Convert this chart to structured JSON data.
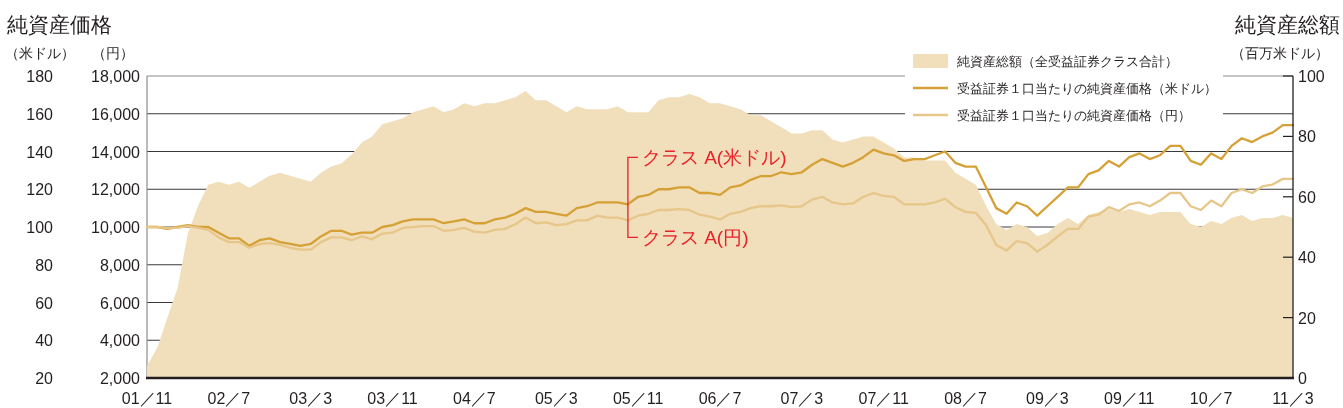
{
  "chart_data": {
    "type": "line",
    "title": "純資産価格",
    "ylabel": "（米ドル）",
    "y2label": "（円）",
    "y3label": "（百万米ドル）",
    "x": [
      "2001-11",
      "2001-12",
      "2002-01",
      "2002-02",
      "2002-03",
      "2002-04",
      "2002-05",
      "2002-06",
      "2002-07",
      "2002-08",
      "2002-09",
      "2002-10",
      "2002-11",
      "2002-12",
      "2003-01",
      "2003-02",
      "2003-03",
      "2003-04",
      "2003-05",
      "2003-06",
      "2003-07",
      "2003-08",
      "2003-09",
      "2003-10",
      "2003-11",
      "2003-12",
      "2004-01",
      "2004-02",
      "2004-03",
      "2004-04",
      "2004-05",
      "2004-06",
      "2004-07",
      "2004-08",
      "2004-09",
      "2004-10",
      "2004-11",
      "2004-12",
      "2005-01",
      "2005-02",
      "2005-03",
      "2005-04",
      "2005-05",
      "2005-06",
      "2005-07",
      "2005-08",
      "2005-09",
      "2005-10",
      "2005-11",
      "2005-12",
      "2006-01",
      "2006-02",
      "2006-03",
      "2006-04",
      "2006-05",
      "2006-06",
      "2006-07",
      "2006-08",
      "2006-09",
      "2006-10",
      "2006-11",
      "2006-12",
      "2007-01",
      "2007-02",
      "2007-03",
      "2007-04",
      "2007-05",
      "2007-06",
      "2007-07",
      "2007-08",
      "2007-09",
      "2007-10",
      "2007-11",
      "2007-12",
      "2008-01",
      "2008-02",
      "2008-03",
      "2008-04",
      "2008-05",
      "2008-06",
      "2008-07",
      "2008-08",
      "2008-09",
      "2008-10",
      "2008-11",
      "2008-12",
      "2009-01",
      "2009-02",
      "2009-03",
      "2009-04",
      "2009-05",
      "2009-06",
      "2009-07",
      "2009-08",
      "2009-09",
      "2009-10",
      "2009-11",
      "2009-12",
      "2010-01",
      "2010-02",
      "2010-03",
      "2010-04",
      "2010-05",
      "2010-06",
      "2010-07",
      "2010-08",
      "2010-09",
      "2010-10",
      "2010-11",
      "2010-12",
      "2011-01",
      "2011-02",
      "2011-03"
    ],
    "xlim": [
      "2001-11",
      "2011-03"
    ],
    "xticks": [
      {
        "value": "2001-11",
        "label": "01／11"
      },
      {
        "value": "2002-07",
        "label": "02／7"
      },
      {
        "value": "2003-03",
        "label": "03／3"
      },
      {
        "value": "2003-11",
        "label": "03／11"
      },
      {
        "value": "2004-07",
        "label": "04／7"
      },
      {
        "value": "2005-03",
        "label": "05／3"
      },
      {
        "value": "2005-11",
        "label": "05／11"
      },
      {
        "value": "2006-07",
        "label": "06／7"
      },
      {
        "value": "2007-03",
        "label": "07／3"
      },
      {
        "value": "2007-11",
        "label": "07／11"
      },
      {
        "value": "2008-07",
        "label": "08／7"
      },
      {
        "value": "2009-03",
        "label": "09／3"
      },
      {
        "value": "2009-11",
        "label": "09／11"
      },
      {
        "value": "2010-07",
        "label": "10／7"
      },
      {
        "value": "2011-03",
        "label": "11／3"
      }
    ],
    "ylim": [
      20,
      180
    ],
    "yticks": [
      20,
      40,
      60,
      80,
      100,
      120,
      140,
      160,
      180
    ],
    "y2lim": [
      2000,
      18000
    ],
    "y2ticks": [
      {
        "value": 2000,
        "label": "2,000"
      },
      {
        "value": 4000,
        "label": "4,000"
      },
      {
        "value": 6000,
        "label": "6,000"
      },
      {
        "value": 8000,
        "label": "8,000"
      },
      {
        "value": 10000,
        "label": "10,000"
      },
      {
        "value": 12000,
        "label": "12,000"
      },
      {
        "value": 14000,
        "label": "14,000"
      },
      {
        "value": 16000,
        "label": "16,000"
      },
      {
        "value": 18000,
        "label": "18,000"
      }
    ],
    "y3lim": [
      0,
      100
    ],
    "y3ticks": [
      0,
      20,
      40,
      60,
      80,
      100
    ],
    "series": [
      {
        "name": "純資産総額（全受益証券クラス合計）",
        "type": "area",
        "axis": "y3",
        "color": "#f1deba",
        "values": [
          4,
          10,
          20,
          30,
          48,
          57,
          64,
          65,
          64,
          65,
          63,
          65,
          67,
          68,
          67,
          66,
          65,
          68,
          70,
          71,
          74,
          78,
          80,
          84,
          85,
          86,
          88,
          89,
          90,
          88,
          89,
          91,
          90,
          91,
          91,
          92,
          93,
          95,
          92,
          92,
          90,
          88,
          90,
          89,
          89,
          89,
          90,
          88,
          88,
          88,
          92,
          93,
          93,
          94,
          93,
          91,
          91,
          90,
          89,
          87,
          87,
          85,
          83,
          81,
          81,
          82,
          82,
          79,
          78,
          79,
          80,
          80,
          78,
          76,
          73,
          73,
          72,
          72,
          72,
          68,
          66,
          64,
          57,
          51,
          49,
          51,
          50,
          47,
          48,
          51,
          53,
          51,
          54,
          55,
          56,
          55,
          56,
          55,
          54,
          55,
          55,
          55,
          51,
          50,
          52,
          51,
          53,
          54,
          52,
          53,
          53,
          54,
          53
        ]
      },
      {
        "name": "受益証券１口当たりの純資産価格（米ドル）",
        "axis": "y",
        "color": "#d5a136",
        "values": [
          100,
          100,
          99,
          100,
          101,
          100,
          100,
          97,
          94,
          94,
          90,
          93,
          94,
          92,
          91,
          90,
          91,
          95,
          98,
          98,
          96,
          97,
          97,
          100,
          101,
          103,
          104,
          104,
          104,
          102,
          103,
          104,
          102,
          102,
          104,
          105,
          107,
          110,
          108,
          108,
          107,
          106,
          110,
          111,
          113,
          113,
          113,
          112,
          116,
          117,
          120,
          120,
          121,
          121,
          118,
          118,
          117,
          121,
          122,
          125,
          127,
          127,
          129,
          128,
          129,
          133,
          136,
          134,
          132,
          134,
          137,
          141,
          139,
          138,
          135,
          136,
          136,
          138,
          140,
          134,
          132,
          132,
          121,
          110,
          107,
          113,
          111,
          106,
          111,
          116,
          121,
          121,
          128,
          130,
          135,
          132,
          137,
          139,
          136,
          138,
          143,
          143,
          135,
          133,
          139,
          136,
          143,
          147,
          145,
          148,
          150,
          154,
          154
        ]
      },
      {
        "name": "受益証券１口当たりの純資産価格（円）",
        "axis": "y2",
        "color": "#e7c689",
        "values": [
          10000,
          10000,
          9950,
          9950,
          10050,
          9950,
          9850,
          9450,
          9200,
          9200,
          8900,
          9100,
          9150,
          9050,
          8900,
          8800,
          8800,
          9200,
          9450,
          9450,
          9300,
          9500,
          9350,
          9650,
          9700,
          9950,
          10000,
          10050,
          10050,
          9800,
          9850,
          9950,
          9750,
          9700,
          9850,
          9900,
          10150,
          10500,
          10200,
          10250,
          10100,
          10150,
          10350,
          10350,
          10600,
          10500,
          10500,
          10350,
          10600,
          10700,
          10900,
          10900,
          10950,
          10900,
          10650,
          10550,
          10400,
          10700,
          10800,
          11000,
          11100,
          11100,
          11150,
          11050,
          11100,
          11450,
          11600,
          11300,
          11200,
          11250,
          11600,
          11800,
          11650,
          11600,
          11200,
          11200,
          11200,
          11300,
          11500,
          11050,
          10800,
          10750,
          10100,
          9050,
          8750,
          9250,
          9150,
          8700,
          9050,
          9500,
          9900,
          9900,
          10550,
          10650,
          11050,
          10850,
          11200,
          11300,
          11100,
          11400,
          11800,
          11800,
          11100,
          10900,
          11400,
          11100,
          11800,
          12000,
          11800,
          12150,
          12250,
          12550,
          12550
        ]
      }
    ],
    "grid": "y",
    "legend": "top right",
    "annotations": [
      "純資産総額",
      {
        "text": "クラス A(米ドル)",
        "x": "2005-10",
        "y": 112
      },
      {
        "text": "クラス A(円)",
        "x": "2005-10",
        "y": 103.5
      }
    ]
  }
}
